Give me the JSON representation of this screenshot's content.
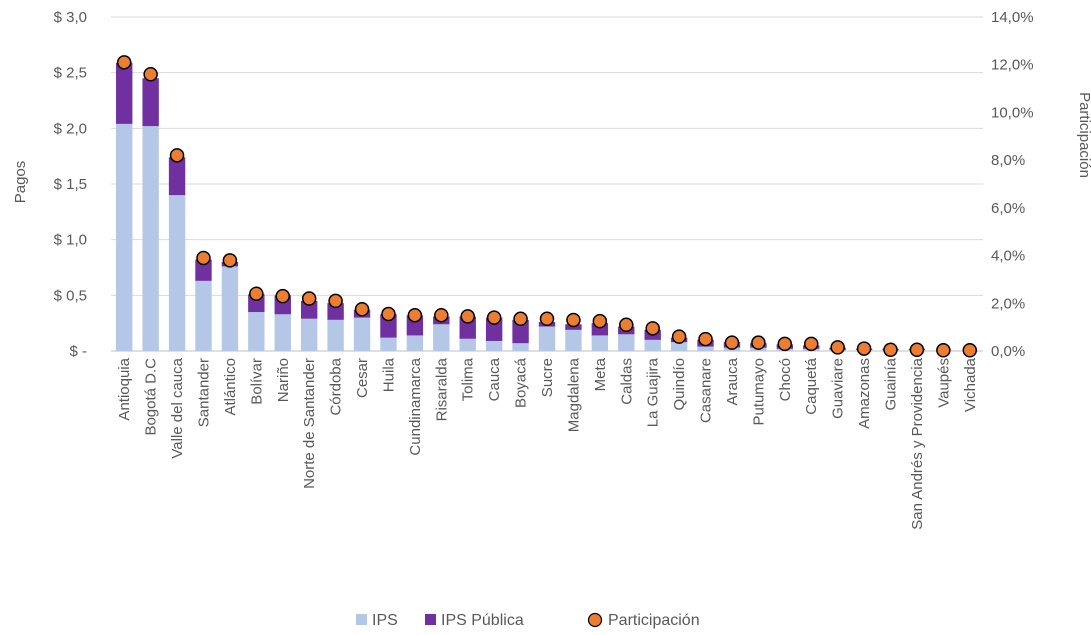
{
  "chart_data": {
    "type": "bar",
    "stacked": true,
    "categories": [
      "Antioquia",
      "Bogotá D.C",
      "Valle del cauca",
      "Santander",
      "Atlántico",
      "Bolívar",
      "Nariño",
      "Norte de Santander",
      "Córdoba",
      "Cesar",
      "Huila",
      "Cundinamarca",
      "Risaralda",
      "Tolima",
      "Cauca",
      "Boyacá",
      "Sucre",
      "Magdalena",
      "Meta",
      "Caldas",
      "La Guajira",
      "Quindío",
      "Casanare",
      "Arauca",
      "Putumayo",
      "Chocó",
      "Caquetá",
      "Guaviare",
      "Amazonas",
      "Guainía",
      "San Andrés y Providencia",
      "Vaupés",
      "Vichada"
    ],
    "series": [
      {
        "name": "IPS",
        "axis": "left",
        "values": [
          2.04,
          2.02,
          1.4,
          0.63,
          0.76,
          0.35,
          0.33,
          0.29,
          0.28,
          0.3,
          0.12,
          0.14,
          0.24,
          0.11,
          0.09,
          0.07,
          0.22,
          0.19,
          0.14,
          0.15,
          0.1,
          0.08,
          0.04,
          0.03,
          0.03,
          0.02,
          0.02,
          0.01,
          0.01,
          0.01,
          0.01,
          0.0,
          0.0
        ]
      },
      {
        "name": "IPS Pública",
        "axis": "left",
        "values": [
          0.55,
          0.43,
          0.34,
          0.19,
          0.04,
          0.16,
          0.17,
          0.16,
          0.15,
          0.07,
          0.21,
          0.18,
          0.07,
          0.2,
          0.21,
          0.21,
          0.04,
          0.05,
          0.11,
          0.07,
          0.09,
          0.04,
          0.06,
          0.05,
          0.04,
          0.04,
          0.03,
          0.02,
          0.01,
          0.01,
          0.01,
          0.0,
          0.0
        ]
      },
      {
        "name": "Participación",
        "axis": "right",
        "type": "scatter",
        "values": [
          12.1,
          11.6,
          8.2,
          3.9,
          3.8,
          2.4,
          2.3,
          2.2,
          2.1,
          1.75,
          1.55,
          1.5,
          1.5,
          1.45,
          1.4,
          1.35,
          1.35,
          1.3,
          1.25,
          1.1,
          0.95,
          0.6,
          0.5,
          0.35,
          0.35,
          0.3,
          0.3,
          0.15,
          0.1,
          0.05,
          0.05,
          0.03,
          0.03
        ]
      }
    ],
    "ylabel": "Pagos",
    "y2label": "Participación",
    "ylim": [
      0,
      3.0
    ],
    "y2lim": [
      0,
      14
    ],
    "yticks": [
      "$ -",
      "$ 0,5",
      "$ 1,0",
      "$ 1,5",
      "$ 2,0",
      "$ 2,5",
      "$ 3,0"
    ],
    "y2ticks": [
      "0,0%",
      "2,0%",
      "4,0%",
      "6,0%",
      "8,0%",
      "10,0%",
      "12,0%",
      "14,0%"
    ],
    "grid": true,
    "legend": "bottom",
    "colors": {
      "IPS": "#B4C7E7",
      "IPS Pública": "#7030A0",
      "Participación": "#ED7D31",
      "marker_edge": "#000000",
      "grid": "#D9D9D9"
    }
  }
}
